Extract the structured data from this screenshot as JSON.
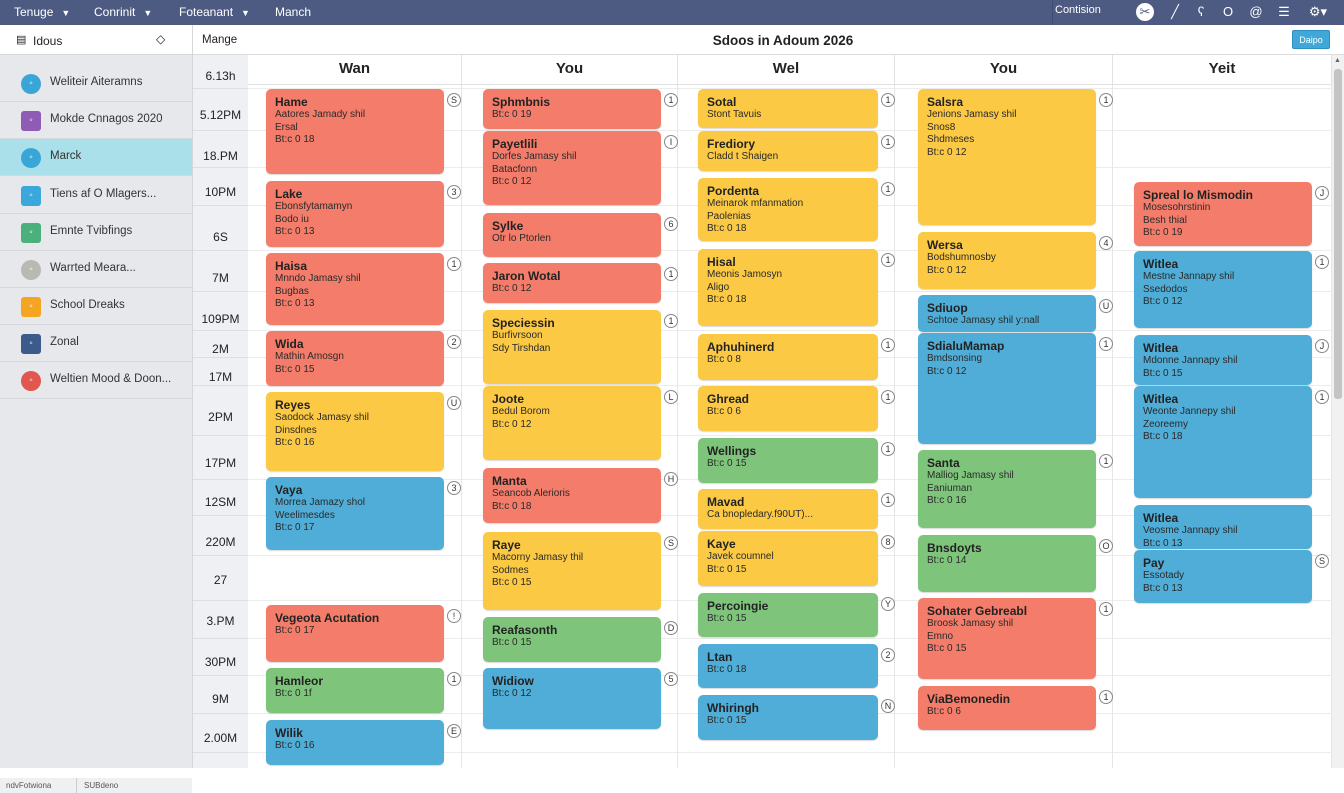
{
  "topbar": {
    "menus": [
      {
        "label": "Tenuge",
        "has_dropdown": true
      },
      {
        "label": "Conrinit",
        "has_dropdown": true
      },
      {
        "label": "Foteanant",
        "has_dropdown": true
      },
      {
        "label": "Manch",
        "has_dropdown": false
      }
    ],
    "right_label": "Contision",
    "icons": [
      "tools-icon",
      "pencil-icon",
      "brush-icon",
      "circle-icon",
      "at-icon",
      "list-icon",
      "settings-icon"
    ]
  },
  "sidebar": {
    "header": "Idous",
    "items": [
      {
        "label": "Weliteir Aiteramns",
        "icon_color": "#3aa6d8",
        "shape": "circle"
      },
      {
        "label": "Mokde Cnnagos 2020",
        "icon_color": "#8e5bb5",
        "shape": "square"
      },
      {
        "label": "Marck",
        "icon_color": "#3aa6d8",
        "shape": "circle",
        "selected": true
      },
      {
        "label": "Tiens af O Mlagers...",
        "icon_color": "#3ba7db",
        "shape": "square"
      },
      {
        "label": "Emnte Tvibfings",
        "icon_color": "#4cb07a",
        "shape": "square"
      },
      {
        "label": "Warrted Meara...",
        "icon_color": "#b9b9b2",
        "shape": "circle"
      },
      {
        "label": "School Dreaks",
        "icon_color": "#f4a623",
        "shape": "square"
      },
      {
        "label": "Zonal",
        "icon_color": "#3c5a8a",
        "shape": "square"
      },
      {
        "label": "Weltien Mood & Doon...",
        "icon_color": "#e0574d",
        "shape": "circle"
      }
    ],
    "footer": [
      "ndvFotwiona",
      "SUBdeno"
    ]
  },
  "main": {
    "left_label": "Mange",
    "title": "Sdoos in Adoum 2026",
    "button": "Daipo"
  },
  "times": [
    "6.13h",
    "5.12PM",
    "18.PM",
    "10PM",
    "6S",
    "7M",
    "109PM",
    "2M",
    "17M",
    "2PM",
    "17PM",
    "12SM",
    "220M",
    "27",
    "3.PM",
    "30PM",
    "9M",
    "2.00M"
  ],
  "colors": {
    "red": "#f47c6a",
    "yellow": "#fbc943",
    "green": "#7ec57b",
    "blue": "#4fadd7"
  },
  "days": [
    {
      "name": "Wan",
      "events": [
        {
          "title": "Hame",
          "lines": [
            "Aatores Jamady shil",
            "Ersal",
            "Bt:c 0  18"
          ],
          "color": "red",
          "badge": "S"
        },
        {
          "title": "Lake",
          "lines": [
            "Ebonsfytamamyn",
            "Bodo  iu",
            "Bt:c 0  13"
          ],
          "color": "red",
          "badge": "3"
        },
        {
          "title": "Haisa",
          "lines": [
            "Mnndo Jamasy shil",
            "Bugbas",
            "Bt:c 0  13"
          ],
          "color": "red",
          "badge": "1"
        },
        {
          "title": "Wida",
          "lines": [
            "Mathin Amosgn",
            "Bt:c 0  15"
          ],
          "color": "red",
          "badge": "2"
        },
        {
          "title": "Reyes",
          "lines": [
            "Saodock Jamasy shil",
            "Dinsdnes",
            "Bt:c 0  16"
          ],
          "color": "yellow",
          "badge": "U"
        },
        {
          "title": "Vaya",
          "lines": [
            "Morrea Jamazy shol",
            "Weelimesdes",
            "Bt:c 0  17"
          ],
          "color": "blue",
          "badge": "3"
        },
        {
          "title": "Vegeota Acutation",
          "lines": [
            "Bt:c 0  17"
          ],
          "color": "red",
          "badge": "!"
        },
        {
          "title": "Hamleor",
          "lines": [
            "Bt:c 0  1f"
          ],
          "color": "green",
          "badge": "1"
        },
        {
          "title": "Wilik",
          "lines": [
            "Bt:c 0  16"
          ],
          "color": "blue",
          "badge": "E"
        }
      ]
    },
    {
      "name": "You",
      "events": [
        {
          "title": "Sphmbnis",
          "lines": [
            "Bt:c 0  19"
          ],
          "color": "red",
          "badge": "1"
        },
        {
          "title": "Payetlili",
          "lines": [
            "Dorfes Jamasy shil",
            "Batacfonn",
            "Bt:c 0  12"
          ],
          "color": "red",
          "badge": "I"
        },
        {
          "title": "Sylke",
          "lines": [
            "Otr lo Ptorlen"
          ],
          "color": "red",
          "badge": "6"
        },
        {
          "title": "Jaron Wotal",
          "lines": [
            "Bt:c 0  12"
          ],
          "color": "red",
          "badge": "1"
        },
        {
          "title": "Speciessin",
          "lines": [
            "Burfivrsoon",
            "Sdy  Tirshdan"
          ],
          "color": "yellow",
          "badge": "1"
        },
        {
          "title": "Joote",
          "lines": [
            "Bedul Borom",
            "Bt:c 0  12"
          ],
          "color": "yellow",
          "badge": "L"
        },
        {
          "title": "Manta",
          "lines": [
            "Seancob Alerioris",
            "Bt:c 0  18"
          ],
          "color": "red",
          "badge": "H"
        },
        {
          "title": "Raye",
          "lines": [
            "Macorny Jamasy thil",
            "Sodmes",
            "Bt:c 0  15"
          ],
          "color": "yellow",
          "badge": "S"
        },
        {
          "title": "Reafasonth",
          "lines": [
            "Bt:c 0  15"
          ],
          "color": "green",
          "badge": "D"
        },
        {
          "title": "Widiow",
          "lines": [
            "Bt:c 0  12"
          ],
          "color": "blue",
          "badge": "5"
        }
      ]
    },
    {
      "name": "Wel",
      "events": [
        {
          "title": "Sotal",
          "lines": [
            "Stont Tavuis"
          ],
          "color": "yellow",
          "badge": "1"
        },
        {
          "title": "Frediory",
          "lines": [
            "Cladd t Shaigen"
          ],
          "color": "yellow",
          "badge": "1"
        },
        {
          "title": "Pordenta",
          "lines": [
            "Meinarok mfanmation",
            "Paolenias",
            "Bt:c 0  18"
          ],
          "color": "yellow",
          "badge": "1"
        },
        {
          "title": "Hisal",
          "lines": [
            "Meonis Jamosyn",
            "Aligo",
            "Bt:c 0  18"
          ],
          "color": "yellow",
          "badge": "1"
        },
        {
          "title": "Aphuhinerd",
          "lines": [
            "Bt:c 0  8"
          ],
          "color": "yellow",
          "badge": "1"
        },
        {
          "title": "Ghread",
          "lines": [
            "Bt:c 0  6"
          ],
          "color": "yellow",
          "badge": "1"
        },
        {
          "title": "Wellings",
          "lines": [
            "Bt:c 0  15"
          ],
          "color": "green",
          "badge": "1"
        },
        {
          "title": "Mavad",
          "lines": [
            "Ca bnopledary.f90UT)..."
          ],
          "color": "yellow",
          "badge": "1"
        },
        {
          "title": "Kaye",
          "lines": [
            "Javek coumnel",
            "Bt:c 0  15"
          ],
          "color": "yellow",
          "badge": "8"
        },
        {
          "title": "Percoingie",
          "lines": [
            "Bt:c 0  15"
          ],
          "color": "green",
          "badge": "Y"
        },
        {
          "title": "Ltan",
          "lines": [
            "Bt:c 0  18"
          ],
          "color": "blue",
          "badge": "2"
        },
        {
          "title": "Whiringh",
          "lines": [
            "Bt:c 0  15"
          ],
          "color": "blue",
          "badge": "N"
        }
      ]
    },
    {
      "name": "You",
      "events": [
        {
          "title": "Salsra",
          "lines": [
            "Jenions Jamasy shil",
            "Snos8",
            "Shdmeses",
            "Bt:c 0  12"
          ],
          "color": "yellow",
          "badge": "1"
        },
        {
          "title": "Wersa",
          "lines": [
            "Bodshumnosby",
            "Bt:c 0  12"
          ],
          "color": "yellow",
          "badge": "4"
        },
        {
          "title": "Sdiuop",
          "lines": [
            "Schtoe Jamasy shil y:nall"
          ],
          "color": "blue",
          "badge": "U"
        },
        {
          "title": "SdialuMamap",
          "lines": [
            "Bmdsonsing",
            "Bt:c 0  12"
          ],
          "color": "blue",
          "badge": "1"
        },
        {
          "title": "Santa",
          "lines": [
            "Malliog Jamasy shil",
            "Eaniuman",
            "Bt:c 0  16"
          ],
          "color": "green",
          "badge": "1"
        },
        {
          "title": "Bnsdoyts",
          "lines": [
            "Bt:c 0  14"
          ],
          "color": "green",
          "badge": "O"
        },
        {
          "title": "Sohater Gebreabl",
          "lines": [
            "Broosk Jamasy shil",
            "Emno",
            "Bt:c 0  15"
          ],
          "color": "red",
          "badge": "1"
        },
        {
          "title": "ViaBemonedin",
          "lines": [
            "Bt:c 0  6"
          ],
          "color": "red",
          "badge": "1"
        }
      ]
    },
    {
      "name": "Yeit",
      "events": [
        {
          "title": "Spreal lo Mismodin",
          "lines": [
            "Mosesohrstinin",
            "Besh thial",
            "Bt:c 0  19"
          ],
          "color": "red",
          "badge": "J"
        },
        {
          "title": "Witlea",
          "lines": [
            "Mestne Jannapy shil",
            "Ssedodos",
            "Bt:c 0  12"
          ],
          "color": "blue",
          "badge": "1"
        },
        {
          "title": "Witlea",
          "lines": [
            "Mdonne Jannapy shil",
            "Bt:c 0  15"
          ],
          "color": "blue",
          "badge": "J"
        },
        {
          "title": "Witlea",
          "lines": [
            "Weonte Jannepy shil",
            "Zeoreemy",
            "Bt:c 0  18"
          ],
          "color": "blue",
          "badge": "1"
        },
        {
          "title": "Witlea",
          "lines": [
            "Veosme Jannapy shil",
            "Bt:c 0  13"
          ],
          "color": "blue",
          "badge": ""
        },
        {
          "title": "Pay",
          "lines": [
            "Essotady",
            "Bt:c 0  13"
          ],
          "color": "blue",
          "badge": "S"
        }
      ]
    }
  ]
}
